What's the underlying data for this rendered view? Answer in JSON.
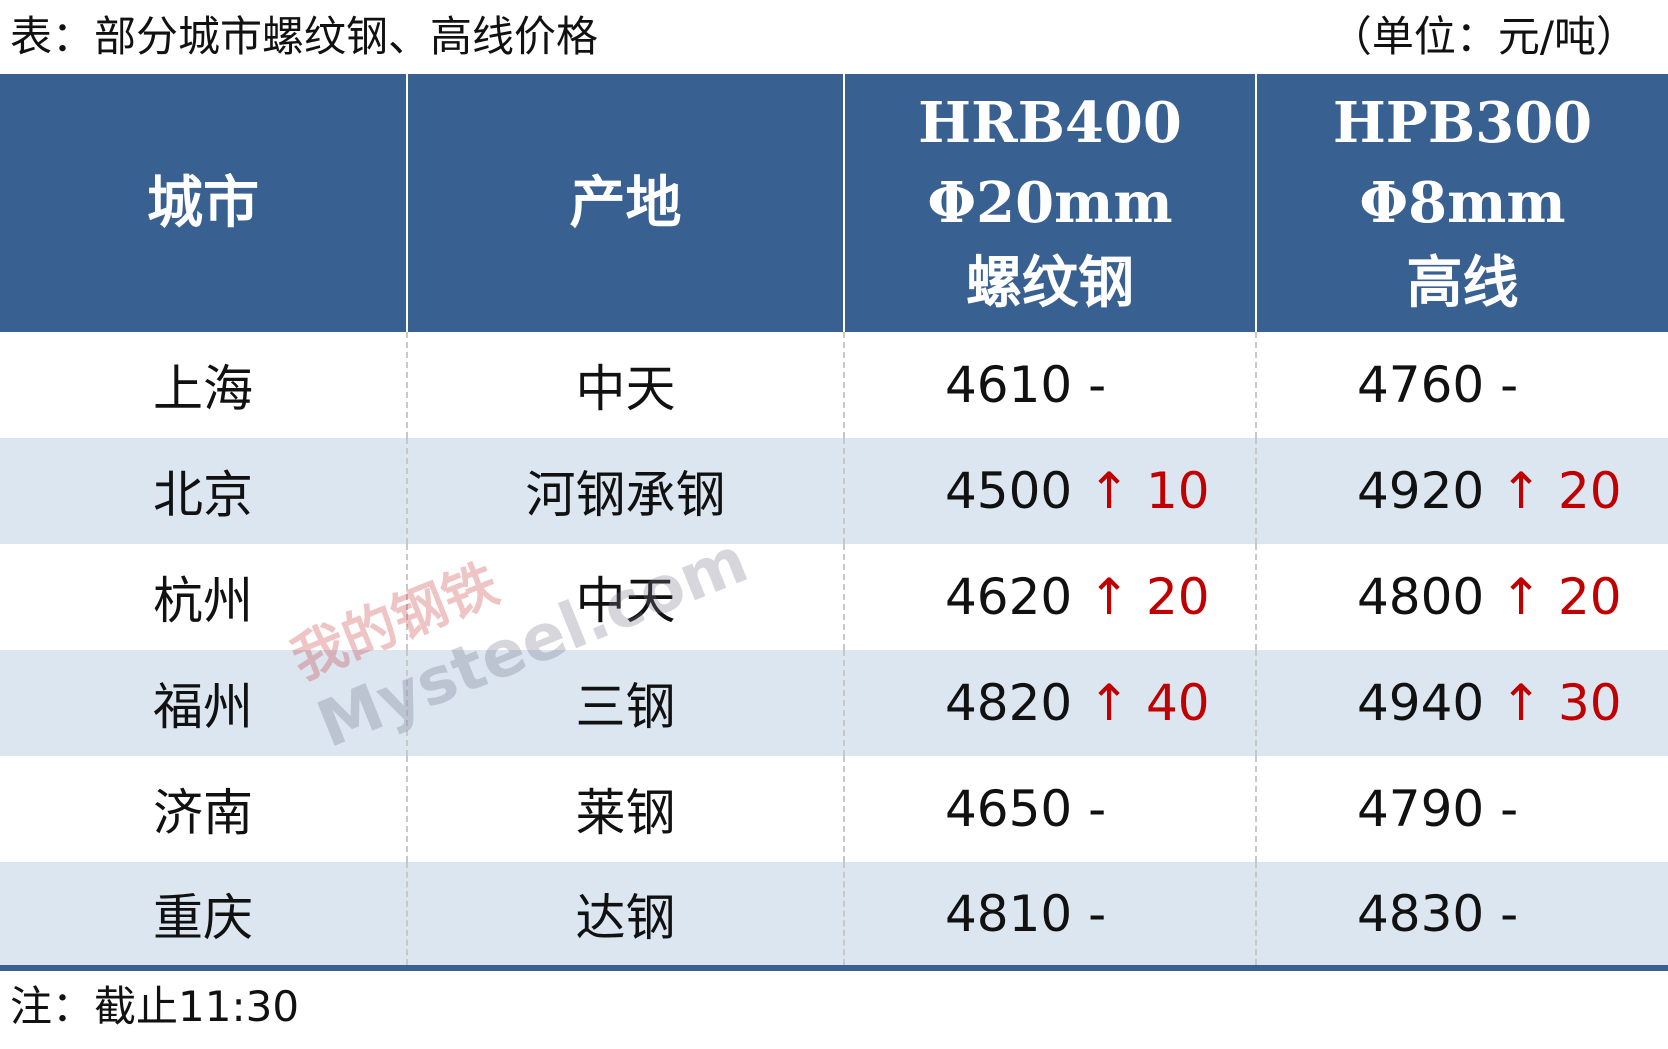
{
  "title": "表：部分城市螺纹钢、高线价格",
  "unit": "（单位：元/吨）",
  "headers": {
    "city": "城市",
    "origin": "产地",
    "rebar": [
      "HRB400",
      "Φ20mm",
      "螺纹钢"
    ],
    "wire": [
      "HPB300",
      "Φ8mm",
      "高线"
    ]
  },
  "rows": [
    {
      "city": "上海",
      "origin": "中天",
      "rebar": "4610",
      "rebar_chg": "-",
      "rebar_dir": "flat",
      "wire": "4760",
      "wire_chg": "-",
      "wire_dir": "flat"
    },
    {
      "city": "北京",
      "origin": "河钢承钢",
      "rebar": "4500",
      "rebar_chg": "↑ 10",
      "rebar_dir": "up",
      "wire": "4920",
      "wire_chg": "↑ 20",
      "wire_dir": "up"
    },
    {
      "city": "杭州",
      "origin": "中天",
      "rebar": "4620",
      "rebar_chg": "↑ 20",
      "rebar_dir": "up",
      "wire": "4800",
      "wire_chg": "↑ 20",
      "wire_dir": "up"
    },
    {
      "city": "福州",
      "origin": "三钢",
      "rebar": "4820",
      "rebar_chg": "↑ 40",
      "rebar_dir": "up",
      "wire": "4940",
      "wire_chg": "↑ 30",
      "wire_dir": "up"
    },
    {
      "city": "济南",
      "origin": "莱钢",
      "rebar": "4650",
      "rebar_chg": "-",
      "rebar_dir": "flat",
      "wire": "4790",
      "wire_chg": "-",
      "wire_dir": "flat"
    },
    {
      "city": "重庆",
      "origin": "达钢",
      "rebar": "4810",
      "rebar_chg": "-",
      "rebar_dir": "flat",
      "wire": "4830",
      "wire_chg": "-",
      "wire_dir": "flat"
    }
  ],
  "note": "注：截止11:30",
  "watermark": {
    "cn": "我的钢铁",
    "en": "Mysteel.com"
  },
  "colors": {
    "header_bg": "#386090",
    "alt_row": "#dce6f0",
    "up": "#c00000"
  }
}
